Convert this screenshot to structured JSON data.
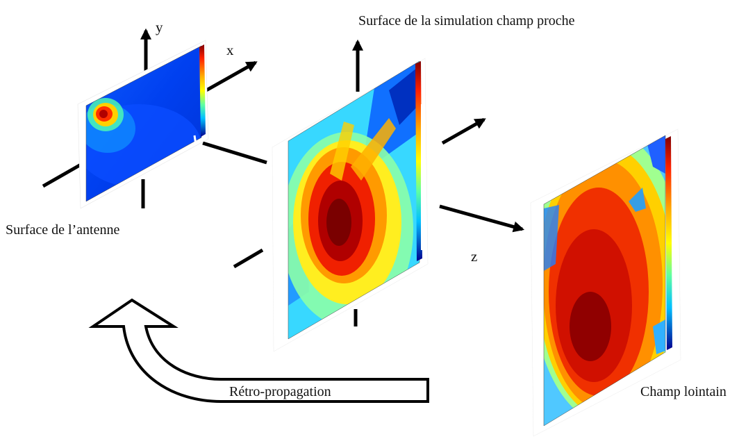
{
  "labels": {
    "y_axis": "y",
    "x_axis": "x",
    "z_axis": "z",
    "near_field_surface": "Surface de la simulation champ proche",
    "antenna_surface": "Surface de l’antenne",
    "far_field": "Champ lointain",
    "back_propagation": "Rétro-propagation"
  },
  "colors": {
    "colormap": [
      "#00008f",
      "#0050ff",
      "#00d0ff",
      "#60ffa0",
      "#ffff00",
      "#ff9000",
      "#ff2000",
      "#800000"
    ]
  },
  "icons": {
    "axis_arrow": "arrow-icon",
    "back_arrow": "curved-arrow-icon"
  }
}
